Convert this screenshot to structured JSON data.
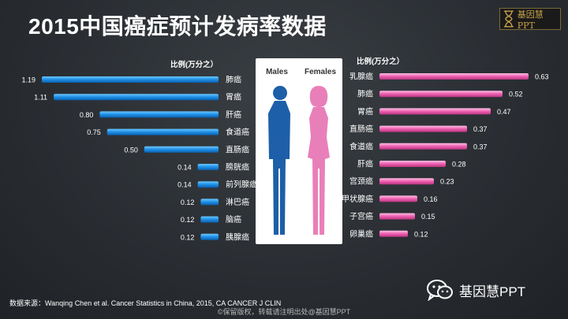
{
  "title": "2015中国癌症预计发病率数据",
  "logo": {
    "text": "基因慧PPT",
    "icon": "hourglass-icon"
  },
  "unit_label": "比例(万分之）",
  "figure": {
    "male_label": "Males",
    "female_label": "Females",
    "male_color": "#1d5fa8",
    "female_color": "#e97fb9"
  },
  "chart_data": [
    {
      "type": "bar",
      "orientation": "horizontal",
      "direction": "right-to-left",
      "unit": "比例(万分之）",
      "color": "#1e8fe6",
      "categories": [
        "肺癌",
        "胃癌",
        "肝癌",
        "食道癌",
        "直肠癌",
        "膀胱癌",
        "前列腺癌",
        "淋巴癌",
        "脑癌",
        "胰腺癌"
      ],
      "values": [
        1.19,
        1.11,
        0.8,
        0.75,
        0.5,
        0.14,
        0.14,
        0.12,
        0.12,
        0.12
      ],
      "labels": [
        "1.19",
        "1.11",
        "0.80",
        "0.75",
        "0.50",
        "0.14",
        "0.14",
        "0.12",
        "0.12",
        "0.12"
      ],
      "xlim": [
        0,
        1.19
      ]
    },
    {
      "type": "bar",
      "orientation": "horizontal",
      "direction": "left-to-right",
      "unit": "比例(万分之）",
      "color": "#ee5fb1",
      "categories": [
        "乳腺癌",
        "肺癌",
        "胃癌",
        "直肠癌",
        "食道癌",
        "肝癌",
        "宫颈癌",
        "甲状腺癌",
        "子宫癌",
        "卵巢癌"
      ],
      "values": [
        0.63,
        0.52,
        0.47,
        0.37,
        0.37,
        0.28,
        0.23,
        0.16,
        0.15,
        0.12
      ],
      "labels": [
        "0.63",
        "0.52",
        "0.47",
        "0.37",
        "0.37",
        "0.28",
        "0.23",
        "0.16",
        "0.15",
        "0.12"
      ],
      "xlim": [
        0,
        0.63
      ]
    }
  ],
  "source": "数据来源：Wanqing Chen et al. Cancer Statistics in China, 2015, CA CANCER J CLIN",
  "copyright": "©保留版权，转载请注明出处@基因慧PPT",
  "brand": {
    "text": "基因慧PPT",
    "icon": "wechat-icon"
  }
}
